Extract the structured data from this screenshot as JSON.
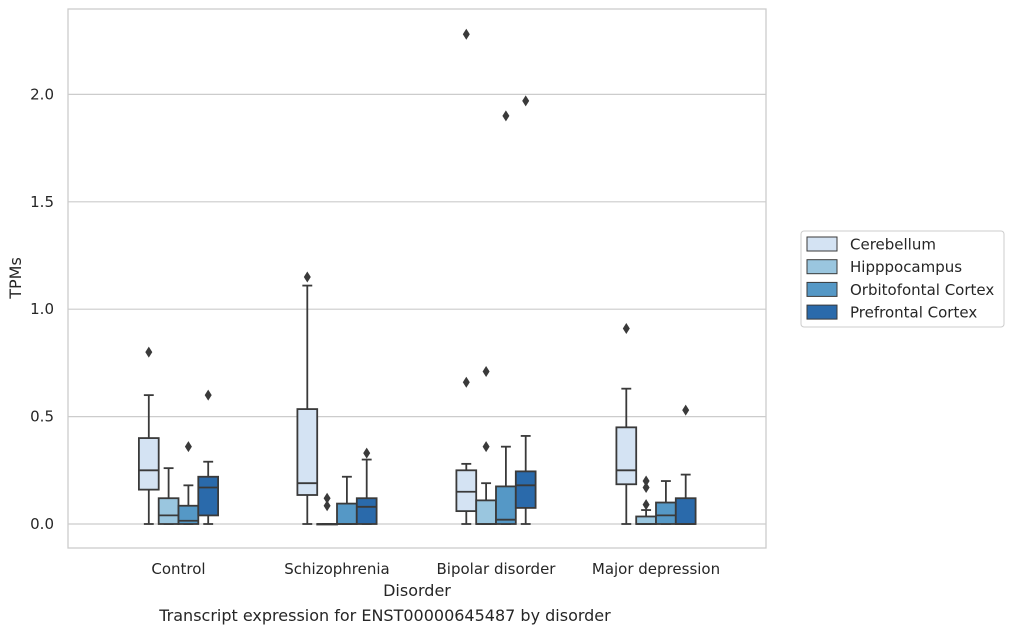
{
  "chart_data": {
    "type": "box",
    "xlabel": "Disorder",
    "ylabel": "TPMs",
    "ylim": [
      -0.11,
      2.4
    ],
    "yticks": [
      "0.0",
      "0.5",
      "1.0",
      "1.5",
      "2.0"
    ],
    "ytick_values": [
      0.0,
      0.5,
      1.0,
      1.5,
      2.0
    ],
    "grid": "horizontal",
    "legend_position": "right",
    "categories": [
      "Control",
      "Schizophrenia",
      "Bipolar disorder",
      "Major depression"
    ],
    "series": [
      {
        "name": "Cerebellum",
        "color": "#d4e3f3",
        "boxes": [
          {
            "whislo": 0.0,
            "q1": 0.16,
            "med": 0.25,
            "q3": 0.4,
            "whishi": 0.6,
            "fliers": [
              0.8
            ]
          },
          {
            "whislo": 0.0,
            "q1": 0.135,
            "med": 0.19,
            "q3": 0.535,
            "whishi": 1.11,
            "fliers": [
              1.15
            ]
          },
          {
            "whislo": 0.0,
            "q1": 0.06,
            "med": 0.15,
            "q3": 0.25,
            "whishi": 0.28,
            "fliers": [
              0.66,
              2.28
            ]
          },
          {
            "whislo": 0.0,
            "q1": 0.185,
            "med": 0.25,
            "q3": 0.45,
            "whishi": 0.63,
            "fliers": [
              0.91
            ]
          }
        ]
      },
      {
        "name": "Hipppocampus",
        "color": "#9ac6df",
        "boxes": [
          {
            "whislo": 0.0,
            "q1": 0.0,
            "med": 0.04,
            "q3": 0.12,
            "whishi": 0.26,
            "fliers": []
          },
          {
            "whislo": 0.0,
            "q1": 0.0,
            "med": 0.0,
            "q3": 0.0,
            "whishi": 0.0,
            "fliers": [
              0.085,
              0.12
            ]
          },
          {
            "whislo": 0.0,
            "q1": 0.0,
            "med": 0.0,
            "q3": 0.11,
            "whishi": 0.19,
            "fliers": [
              0.36,
              0.71
            ]
          },
          {
            "whislo": 0.0,
            "q1": 0.0,
            "med": 0.0,
            "q3": 0.035,
            "whishi": 0.065,
            "fliers": [
              0.09,
              0.17,
              0.2
            ]
          }
        ]
      },
      {
        "name": "Orbitofontal Cortex",
        "color": "#5598c6",
        "boxes": [
          {
            "whislo": 0.0,
            "q1": 0.0,
            "med": 0.015,
            "q3": 0.085,
            "whishi": 0.18,
            "fliers": [
              0.36
            ]
          },
          {
            "whislo": 0.0,
            "q1": 0.0,
            "med": 0.0,
            "q3": 0.095,
            "whishi": 0.22,
            "fliers": []
          },
          {
            "whislo": 0.0,
            "q1": 0.0,
            "med": 0.02,
            "q3": 0.175,
            "whishi": 0.36,
            "fliers": [
              1.9
            ]
          },
          {
            "whislo": 0.0,
            "q1": 0.0,
            "med": 0.04,
            "q3": 0.1,
            "whishi": 0.2,
            "fliers": []
          }
        ]
      },
      {
        "name": "Prefrontal Cortex",
        "color": "#2a6aab",
        "boxes": [
          {
            "whislo": 0.0,
            "q1": 0.04,
            "med": 0.17,
            "q3": 0.22,
            "whishi": 0.29,
            "fliers": [
              0.6
            ]
          },
          {
            "whislo": 0.0,
            "q1": 0.0,
            "med": 0.08,
            "q3": 0.12,
            "whishi": 0.3,
            "fliers": [
              0.33
            ]
          },
          {
            "whislo": 0.0,
            "q1": 0.075,
            "med": 0.18,
            "q3": 0.245,
            "whishi": 0.41,
            "fliers": [
              1.97
            ]
          },
          {
            "whislo": 0.0,
            "q1": 0.0,
            "med": 0.0,
            "q3": 0.12,
            "whishi": 0.23,
            "fliers": [
              0.53
            ]
          }
        ]
      }
    ]
  },
  "caption": "Transcript expression for ENST00000645487 by disorder"
}
